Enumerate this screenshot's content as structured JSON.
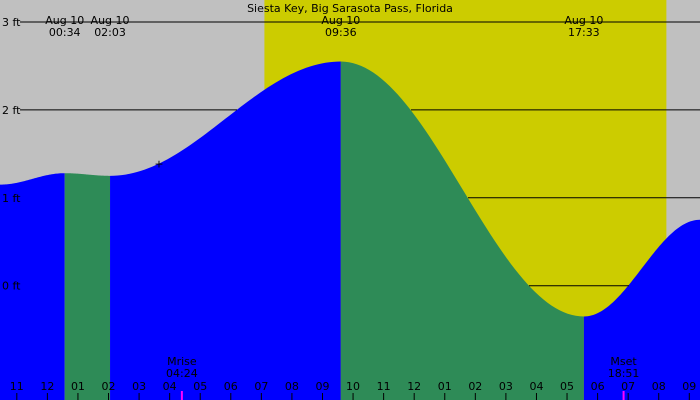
{
  "title": "Siesta Key, Big Sarasota Pass, Florida",
  "colors": {
    "night": "#c0c0c0",
    "day": "#cccc00",
    "rising": "#0000ff",
    "falling": "#2e8b57",
    "grid": "#000000",
    "text": "#000000",
    "moon": "#ff00ff"
  },
  "chart_data": {
    "type": "area",
    "title": "Siesta Key, Big Sarasota Pass, Florida",
    "xlabel": "",
    "ylabel": "",
    "x_unit": "hours from midnight Aug 10",
    "xlim": [
      -1.55,
      21.35
    ],
    "ylim": [
      -1.3,
      3.25
    ],
    "y_ticks": [
      {
        "value": 3,
        "label": "3 ft"
      },
      {
        "value": 2,
        "label": "2 ft"
      },
      {
        "value": 1,
        "label": "1 ft"
      },
      {
        "value": 0,
        "label": "0 ft"
      }
    ],
    "daylight": {
      "sunrise": 7.1,
      "sunset": 20.25
    },
    "tide_extremes": [
      {
        "date": "Aug 10",
        "time": "00:34",
        "hour": 0.567,
        "height": 1.28,
        "type": "high"
      },
      {
        "date": "Aug 10",
        "time": "02:03",
        "hour": 2.05,
        "height": 1.25,
        "type": "low"
      },
      {
        "date": "Aug 10",
        "time": "09:36",
        "hour": 9.6,
        "height": 2.55,
        "type": "high"
      },
      {
        "date": "Aug 10",
        "time": "17:33",
        "hour": 17.55,
        "height": -0.35,
        "type": "low"
      }
    ],
    "curve_edges": [
      {
        "hour": -1.55,
        "height": 1.15
      },
      {
        "hour": 21.35,
        "height": 0.75
      }
    ],
    "x_ticks": [
      "11",
      "12",
      "01",
      "02",
      "03",
      "04",
      "05",
      "06",
      "07",
      "08",
      "09",
      "10",
      "11",
      "12",
      "01",
      "02",
      "03",
      "04",
      "05",
      "06",
      "07",
      "08",
      "09"
    ],
    "x_tick_start_hour": -1,
    "moon_events": [
      {
        "label": "Mrise",
        "time": "04:24",
        "hour": 4.4
      },
      {
        "label": "Mset",
        "time": "18:51",
        "hour": 18.85
      }
    ]
  }
}
